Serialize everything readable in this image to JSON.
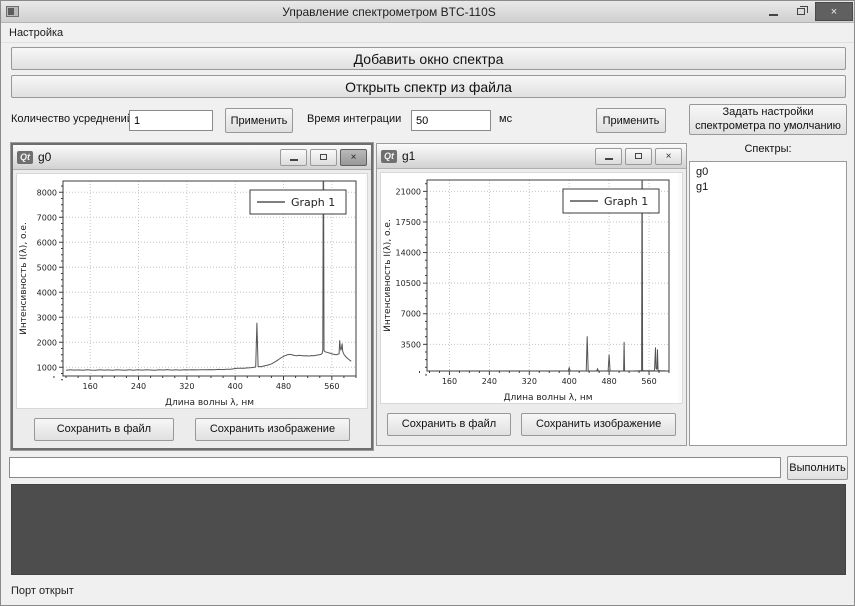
{
  "window": {
    "title": "Управление спектрометром BTC-110S",
    "controls": {
      "close_glyph": "×"
    }
  },
  "menu": {
    "items": [
      {
        "label": "Настройка"
      }
    ]
  },
  "toolbar": {
    "add_window_label": "Добавить окно спектра",
    "open_file_label": "Открыть спектр из файла"
  },
  "settings": {
    "averages_label": "Количество усреднений:",
    "averages_value": "1",
    "apply_label": "Применить",
    "integration_label": "Время интеграции",
    "integration_value": "50",
    "integration_unit": "мс",
    "apply2_label": "Применить",
    "defaults_button_label": "Задать настройки спектрометра по умолчанию"
  },
  "windows": [
    {
      "title": "g0",
      "icon_text": "Qt",
      "close_glyph": "×",
      "save_file_label": "Сохранить в файл",
      "save_image_label": "Сохранить изображение"
    },
    {
      "title": "g1",
      "icon_text": "Qt",
      "close_glyph": "×",
      "save_file_label": "Сохранить в файл",
      "save_image_label": "Сохранить изображение"
    }
  ],
  "spectra_panel": {
    "title": "Спектры:",
    "items": [
      "g0",
      "g1"
    ]
  },
  "command": {
    "input_value": "",
    "run_label": "Выполнить"
  },
  "status": {
    "text": "Порт открыт"
  },
  "colors": {
    "console_bg": "#4d4d4d",
    "chart_line": "#555555",
    "grid": "#c4c4c4",
    "frame": "#3c3c3c"
  },
  "chart_data": [
    {
      "id": "g0",
      "type": "line",
      "title": "",
      "xlabel": "Длина волны λ, нм",
      "ylabel": "Интенсивность I(λ), о.е.",
      "xlim": [
        115,
        600
      ],
      "ylim": [
        650,
        8450
      ],
      "xticks": [
        160,
        240,
        320,
        400,
        480,
        560
      ],
      "yticks": [
        1000,
        2000,
        3000,
        4000,
        5000,
        6000,
        7000,
        8000
      ],
      "grid": true,
      "legend": {
        "position": "top-right",
        "entries": [
          "Graph 1"
        ]
      },
      "series": [
        {
          "name": "Graph 1",
          "points": [
            [
              120,
              880
            ],
            [
              127,
              900
            ],
            [
              134,
              885
            ],
            [
              141,
              895
            ],
            [
              148,
              878
            ],
            [
              155,
              900
            ],
            [
              162,
              888
            ],
            [
              169,
              880
            ],
            [
              176,
              898
            ],
            [
              183,
              885
            ],
            [
              190,
              895
            ],
            [
              197,
              882
            ],
            [
              204,
              900
            ],
            [
              211,
              890
            ],
            [
              218,
              884
            ],
            [
              225,
              900
            ],
            [
              232,
              882
            ],
            [
              239,
              896
            ],
            [
              246,
              886
            ],
            [
              253,
              900
            ],
            [
              260,
              890
            ],
            [
              267,
              882
            ],
            [
              274,
              900
            ],
            [
              281,
              890
            ],
            [
              288,
              906
            ],
            [
              295,
              888
            ],
            [
              302,
              896
            ],
            [
              309,
              886
            ],
            [
              316,
              900
            ],
            [
              323,
              892
            ],
            [
              330,
              900
            ],
            [
              337,
              892
            ],
            [
              344,
              904
            ],
            [
              351,
              896
            ],
            [
              358,
              908
            ],
            [
              365,
              902
            ],
            [
              372,
              914
            ],
            [
              379,
              906
            ],
            [
              386,
              920
            ],
            [
              393,
              924
            ],
            [
              400,
              950
            ],
            [
              405,
              958
            ],
            [
              410,
              964
            ],
            [
              415,
              962
            ],
            [
              420,
              974
            ],
            [
              425,
              982
            ],
            [
              430,
              992
            ],
            [
              434,
              1010
            ],
            [
              436,
              2780
            ],
            [
              438,
              1030
            ],
            [
              442,
              1024
            ],
            [
              446,
              1044
            ],
            [
              450,
              1066
            ],
            [
              454,
              1088
            ],
            [
              458,
              1112
            ],
            [
              462,
              1160
            ],
            [
              466,
              1216
            ],
            [
              470,
              1280
            ],
            [
              474,
              1348
            ],
            [
              478,
              1410
            ],
            [
              482,
              1458
            ],
            [
              486,
              1492
            ],
            [
              490,
              1512
            ],
            [
              494,
              1496
            ],
            [
              498,
              1470
            ],
            [
              502,
              1462
            ],
            [
              506,
              1478
            ],
            [
              510,
              1466
            ],
            [
              514,
              1452
            ],
            [
              518,
              1462
            ],
            [
              522,
              1450
            ],
            [
              526,
              1468
            ],
            [
              530,
              1458
            ],
            [
              534,
              1480
            ],
            [
              538,
              1492
            ],
            [
              542,
              1512
            ],
            [
              544,
              1560
            ],
            [
              545,
              1700
            ],
            [
              546,
              12000
            ],
            [
              547,
              1660
            ],
            [
              549,
              1620
            ],
            [
              552,
              1596
            ],
            [
              555,
              1572
            ],
            [
              558,
              1552
            ],
            [
              561,
              1530
            ],
            [
              564,
              1514
            ],
            [
              567,
              1502
            ],
            [
              570,
              1516
            ],
            [
              572,
              1540
            ],
            [
              573,
              2080
            ],
            [
              574,
              1780
            ],
            [
              575,
              1700
            ],
            [
              576,
              1760
            ],
            [
              577,
              1950
            ],
            [
              578,
              1640
            ],
            [
              580,
              1520
            ],
            [
              583,
              1430
            ],
            [
              586,
              1352
            ],
            [
              589,
              1292
            ],
            [
              592,
              1240
            ]
          ]
        }
      ]
    },
    {
      "id": "g1",
      "type": "line",
      "title": "",
      "xlabel": "Длина волны λ, нм",
      "ylabel": "Интенсивность I(λ), о.е.",
      "xlim": [
        115,
        600
      ],
      "ylim": [
        450,
        22300
      ],
      "xticks": [
        160,
        240,
        320,
        400,
        480,
        560
      ],
      "yticks": [
        3500,
        7000,
        10500,
        14000,
        17500,
        21000
      ],
      "grid": true,
      "legend": {
        "position": "top-right",
        "entries": [
          "Graph 1"
        ]
      },
      "series": [
        {
          "name": "Graph 1",
          "points": [
            [
              120,
              258
            ],
            [
              130,
              252
            ],
            [
              140,
              260
            ],
            [
              150,
              250
            ],
            [
              160,
              258
            ],
            [
              170,
              250
            ],
            [
              180,
              260
            ],
            [
              190,
              253
            ],
            [
              200,
              262
            ],
            [
              210,
              254
            ],
            [
              220,
              260
            ],
            [
              230,
              250
            ],
            [
              240,
              258
            ],
            [
              250,
              253
            ],
            [
              260,
              262
            ],
            [
              270,
              254
            ],
            [
              280,
              260
            ],
            [
              290,
              253
            ],
            [
              300,
              262
            ],
            [
              310,
              255
            ],
            [
              320,
              260
            ],
            [
              330,
              254
            ],
            [
              340,
              262
            ],
            [
              350,
              257
            ],
            [
              360,
              264
            ],
            [
              370,
              259
            ],
            [
              380,
              268
            ],
            [
              390,
              266
            ],
            [
              397,
              276
            ],
            [
              400,
              820
            ],
            [
              403,
              292
            ],
            [
              407,
              284
            ],
            [
              411,
              290
            ],
            [
              416,
              294
            ],
            [
              421,
              300
            ],
            [
              426,
              310
            ],
            [
              431,
              320
            ],
            [
              434,
              338
            ],
            [
              436,
              4420
            ],
            [
              438,
              352
            ],
            [
              442,
              338
            ],
            [
              446,
              344
            ],
            [
              450,
              350
            ],
            [
              454,
              358
            ],
            [
              457,
              700
            ],
            [
              459,
              374
            ],
            [
              463,
              364
            ],
            [
              467,
              370
            ],
            [
              471,
              376
            ],
            [
              475,
              386
            ],
            [
              478,
              398
            ],
            [
              480,
              2320
            ],
            [
              482,
              406
            ],
            [
              486,
              398
            ],
            [
              490,
              404
            ],
            [
              494,
              410
            ],
            [
              498,
              418
            ],
            [
              502,
              424
            ],
            [
              506,
              430
            ],
            [
              509,
              446
            ],
            [
              510,
              3780
            ],
            [
              511,
              446
            ],
            [
              515,
              436
            ],
            [
              519,
              442
            ],
            [
              523,
              448
            ],
            [
              527,
              452
            ],
            [
              531,
              458
            ],
            [
              535,
              462
            ],
            [
              539,
              468
            ],
            [
              542,
              478
            ],
            [
              544,
              500
            ],
            [
              545,
              560
            ],
            [
              546,
              30000
            ],
            [
              547,
              520
            ],
            [
              550,
              492
            ],
            [
              553,
              482
            ],
            [
              556,
              476
            ],
            [
              559,
              472
            ],
            [
              562,
              472
            ],
            [
              565,
              476
            ],
            [
              568,
              480
            ],
            [
              571,
              498
            ],
            [
              573,
              3150
            ],
            [
              574,
              760
            ],
            [
              575,
              680
            ],
            [
              576,
              740
            ],
            [
              577,
              2920
            ],
            [
              578,
              540
            ],
            [
              581,
              500
            ],
            [
              584,
              490
            ],
            [
              587,
              484
            ],
            [
              590,
              478
            ],
            [
              592,
              474
            ]
          ]
        }
      ]
    }
  ]
}
